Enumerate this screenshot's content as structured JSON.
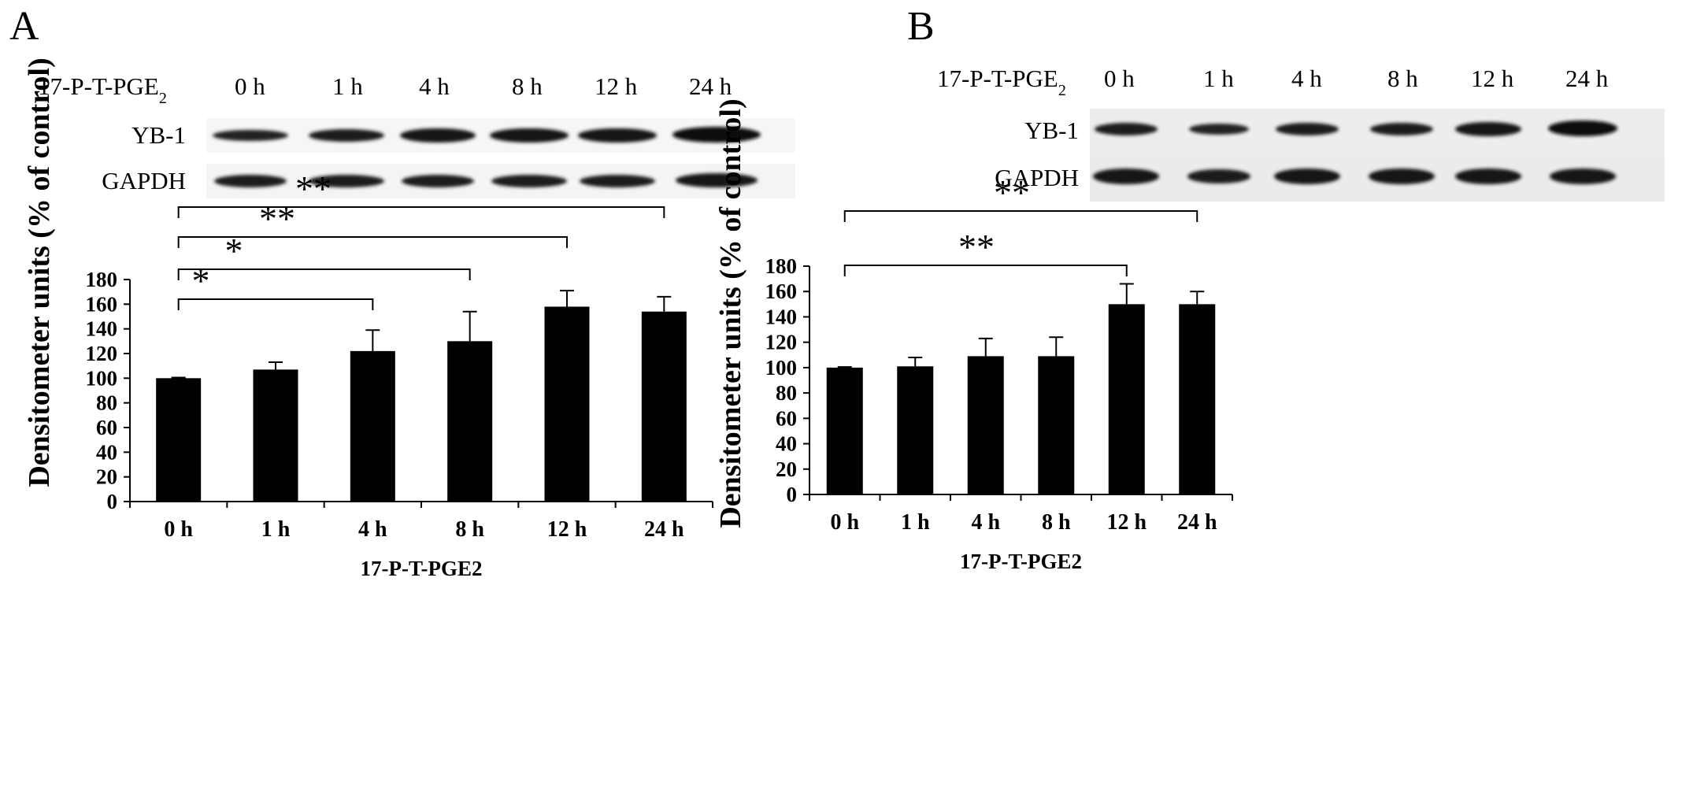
{
  "panels": [
    {
      "letter": "A",
      "blot": {
        "treatment": "17-P-T-PGE",
        "treatment_sub": "2",
        "times": [
          "0 h",
          "1 h",
          "4 h",
          "8 h",
          "12 h",
          "24 h"
        ],
        "rows": [
          "YB-1",
          "GAPDH"
        ]
      },
      "chart_data": {
        "type": "bar",
        "categories": [
          "0 h",
          "1 h",
          "4 h",
          "8 h",
          "12 h",
          "24 h"
        ],
        "values": [
          100,
          107,
          122,
          130,
          158,
          154
        ],
        "errors": [
          0.5,
          6,
          17,
          24,
          13,
          12
        ],
        "xlabel": "17-P-T-PGE2",
        "ylabel": "Densitometer units (% of control)",
        "ylim": [
          0,
          180
        ],
        "yticks": [
          0,
          20,
          40,
          60,
          80,
          100,
          120,
          140,
          160,
          180
        ],
        "bar_color": "#000000",
        "grid": false,
        "significance": [
          {
            "from": "0 h",
            "to": "4 h",
            "label": "*"
          },
          {
            "from": "0 h",
            "to": "8 h",
            "label": "*"
          },
          {
            "from": "0 h",
            "to": "12 h",
            "label": "**"
          },
          {
            "from": "0 h",
            "to": "24 h",
            "label": "**"
          }
        ]
      }
    },
    {
      "letter": "B",
      "blot": {
        "treatment": "17-P-T-PGE",
        "treatment_sub": "2",
        "times": [
          "0 h",
          "1 h",
          "4 h",
          "8 h",
          "12 h",
          "24 h"
        ],
        "rows": [
          "YB-1",
          "GAPDH"
        ]
      },
      "chart_data": {
        "type": "bar",
        "categories": [
          "0 h",
          "1 h",
          "4 h",
          "8 h",
          "12 h",
          "24 h"
        ],
        "values": [
          100,
          101,
          109,
          109,
          150,
          150
        ],
        "errors": [
          0.5,
          7,
          14,
          15,
          16,
          10
        ],
        "xlabel": "17-P-T-PGE2",
        "ylabel": "Densitometer units (% of control)",
        "ylim": [
          0,
          180
        ],
        "yticks": [
          0,
          20,
          40,
          60,
          80,
          100,
          120,
          140,
          160,
          180
        ],
        "bar_color": "#000000",
        "grid": false,
        "significance": [
          {
            "from": "0 h",
            "to": "12 h",
            "label": "**"
          },
          {
            "from": "0 h",
            "to": "24 h",
            "label": "**"
          }
        ]
      }
    }
  ]
}
